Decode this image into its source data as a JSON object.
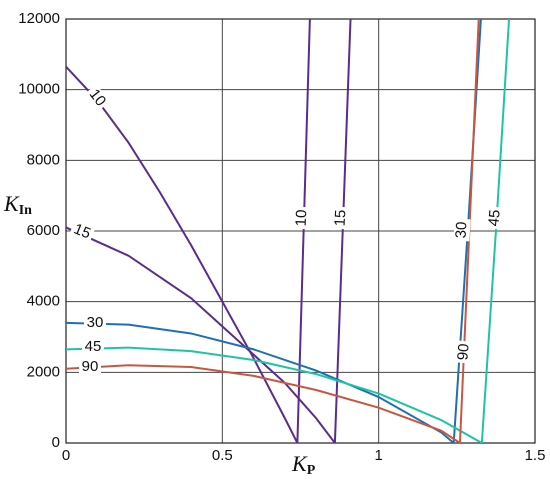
{
  "chart_data": {
    "type": "line",
    "xlabel": "K",
    "xlabel_sub": "P",
    "ylabel": "K",
    "ylabel_sub": "In",
    "xlim": [
      0,
      1.5
    ],
    "xticks": [
      0,
      0.5,
      1,
      1.5
    ],
    "ylim": [
      0,
      12000
    ],
    "yticks": [
      0,
      2000,
      4000,
      6000,
      8000,
      10000,
      12000
    ],
    "grid": true,
    "series": [
      {
        "name": "10",
        "color": "#5b2c8f",
        "x": [
          0,
          0.1,
          0.2,
          0.3,
          0.4,
          0.5,
          0.6,
          0.7,
          0.74,
          0.76,
          0.78
        ],
        "values": [
          10650,
          9700,
          8500,
          7100,
          5600,
          4000,
          2400,
          700,
          0,
          6000,
          12000
        ]
      },
      {
        "name": "15",
        "color": "#5b2c8f",
        "x": [
          0,
          0.2,
          0.4,
          0.6,
          0.7,
          0.8,
          0.86,
          0.885,
          0.91
        ],
        "values": [
          6100,
          5300,
          4100,
          2500,
          1700,
          700,
          0,
          6000,
          12000
        ]
      },
      {
        "name": "30",
        "color": "#1f6fb5",
        "x": [
          0,
          0.2,
          0.4,
          0.6,
          0.8,
          1.0,
          1.2,
          1.24,
          1.285,
          1.327
        ],
        "values": [
          3400,
          3350,
          3100,
          2650,
          2050,
          1300,
          300,
          0,
          6000,
          12000
        ]
      },
      {
        "name": "45",
        "color": "#1fc4a2",
        "x": [
          0,
          0.2,
          0.4,
          0.6,
          0.8,
          1.0,
          1.2,
          1.33,
          1.375,
          1.417
        ],
        "values": [
          2650,
          2700,
          2600,
          2350,
          1950,
          1400,
          650,
          0,
          6000,
          12000
        ]
      },
      {
        "name": "90",
        "color": "#c9573f",
        "x": [
          0,
          0.2,
          0.4,
          0.6,
          0.8,
          1.0,
          1.2,
          1.26,
          1.29,
          1.32
        ],
        "values": [
          2100,
          2200,
          2150,
          1900,
          1500,
          1000,
          350,
          0,
          6000,
          12000
        ]
      }
    ]
  }
}
